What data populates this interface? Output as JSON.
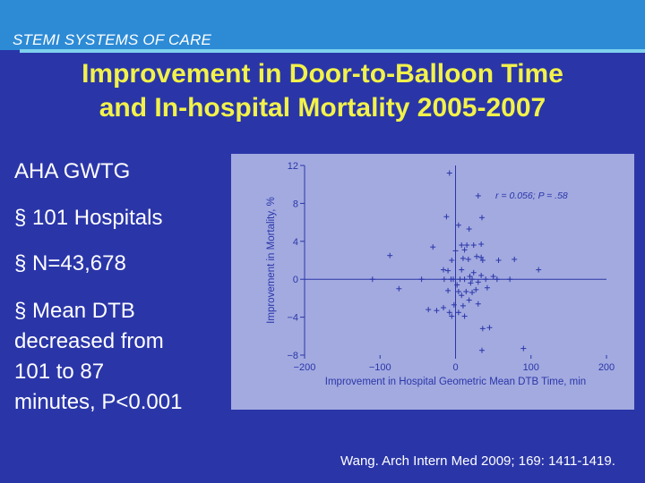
{
  "header": {
    "label": "STEMI SYSTEMS OF CARE"
  },
  "title": {
    "line1": "Improvement in Door-to-Balloon Time",
    "line2": "and In-hospital Mortality 2005-2007"
  },
  "left_panel": {
    "heading": "AHA GWTG",
    "bullet_marker": "§",
    "bullets": [
      "101 Hospitals",
      "N=43,678"
    ],
    "mean_bullet": [
      "Mean DTB",
      "decreased from",
      "101 to 87",
      "minutes, P<0.001"
    ]
  },
  "source": "Wang. Arch Intern Med 2009; 169: 1411-1419.",
  "colors": {
    "background": "#2a36a8",
    "header_bar": "#2d8bd6",
    "title": "#f2f24a",
    "plot_background": "#a3aae0",
    "marker": "#2a36a8"
  },
  "chart_data": {
    "type": "scatter",
    "xlabel": "Improvement in Hospital Geometric Mean DTB Time, min",
    "ylabel": "Improvement in Mortality, %",
    "annotation": "r = 0.056; P = .58",
    "xlim": [
      -200,
      200
    ],
    "ylim": [
      -8,
      12
    ],
    "xticks": [
      -200,
      -100,
      0,
      100,
      200
    ],
    "xtick_labels": [
      "−200",
      "−100",
      "0",
      "100",
      "200"
    ],
    "yticks": [
      -8,
      -4,
      0,
      4,
      8,
      12
    ],
    "ytick_labels": [
      "−8",
      "−4",
      "0",
      "4",
      "8",
      "12"
    ],
    "marker": "+",
    "grid": false,
    "reference_lines": {
      "x": 0,
      "y": 0
    },
    "points": [
      [
        -8,
        11.2
      ],
      [
        30,
        8.8
      ],
      [
        -12,
        6.6
      ],
      [
        35,
        6.5
      ],
      [
        4,
        5.7
      ],
      [
        18,
        5.3
      ],
      [
        -30,
        3.4
      ],
      [
        -87,
        2.5
      ],
      [
        0,
        3.0
      ],
      [
        12,
        3.1
      ],
      [
        8,
        3.6
      ],
      [
        15,
        3.6
      ],
      [
        24,
        3.6
      ],
      [
        34,
        3.7
      ],
      [
        28,
        2.4
      ],
      [
        34,
        2.3
      ],
      [
        36,
        2.0
      ],
      [
        -5,
        2.0
      ],
      [
        10,
        2.2
      ],
      [
        17,
        2.1
      ],
      [
        57,
        2.0
      ],
      [
        78,
        2.1
      ],
      [
        110,
        1.0
      ],
      [
        -16,
        1.0
      ],
      [
        -10,
        0.9
      ],
      [
        8,
        1.0
      ],
      [
        24,
        0.7
      ],
      [
        19,
        0.3
      ],
      [
        34,
        0.4
      ],
      [
        50,
        0.3
      ],
      [
        -110,
        0.0
      ],
      [
        -45,
        0.0
      ],
      [
        -15,
        0.0
      ],
      [
        -6,
        0.0
      ],
      [
        -3,
        0.0
      ],
      [
        6,
        0.0
      ],
      [
        12,
        0.0
      ],
      [
        22,
        0.0
      ],
      [
        40,
        0.0
      ],
      [
        55,
        0.0
      ],
      [
        72,
        0.0
      ],
      [
        2,
        -0.6
      ],
      [
        20,
        -0.4
      ],
      [
        30,
        -0.3
      ],
      [
        42,
        -0.9
      ],
      [
        -75,
        -1.0
      ],
      [
        -10,
        -1.2
      ],
      [
        4,
        -1.3
      ],
      [
        14,
        -1.3
      ],
      [
        22,
        -1.4
      ],
      [
        27,
        -1.1
      ],
      [
        8,
        -1.7
      ],
      [
        18,
        -2.2
      ],
      [
        30,
        -2.6
      ],
      [
        -36,
        -3.2
      ],
      [
        -25,
        -3.3
      ],
      [
        -16,
        -3.0
      ],
      [
        -8,
        -3.5
      ],
      [
        -5,
        -3.9
      ],
      [
        4,
        -3.5
      ],
      [
        12,
        -3.9
      ],
      [
        -2,
        -2.7
      ],
      [
        10,
        -2.8
      ],
      [
        36,
        -5.2
      ],
      [
        45,
        -5.1
      ],
      [
        90,
        -7.3
      ],
      [
        35,
        -7.5
      ]
    ]
  }
}
